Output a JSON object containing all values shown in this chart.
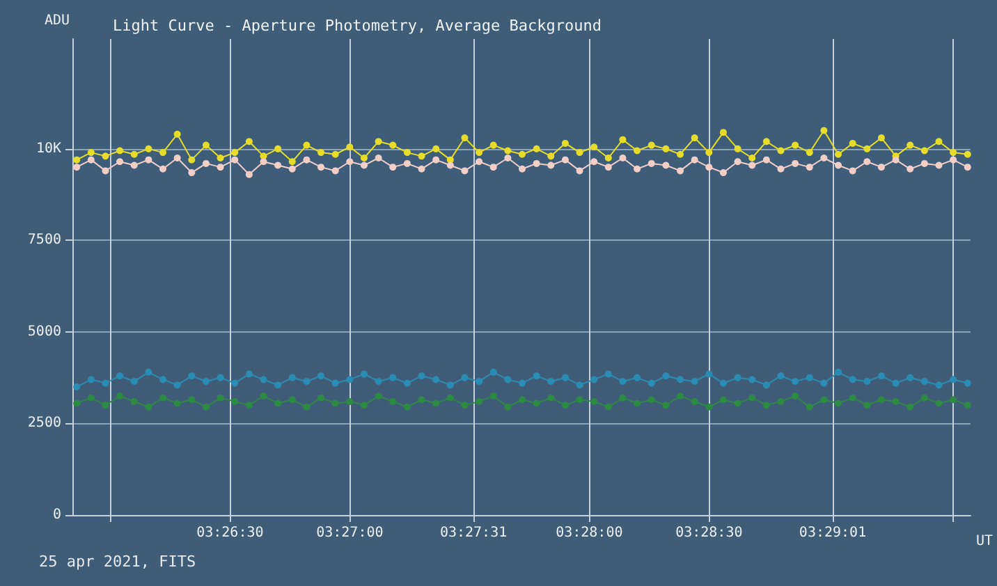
{
  "chart_data": {
    "type": "line",
    "title": "Light Curve - Aperture Photometry, Average Background",
    "xlabel": "UT",
    "ylabel": "ADU",
    "annotations": [
      "25 apr 2021, FITS"
    ],
    "x": [
      3.431,
      3.432,
      3.433,
      3.434,
      3.435,
      3.436,
      3.437,
      3.438,
      3.439,
      3.44,
      3.441,
      3.442,
      3.443,
      3.444,
      3.445,
      3.446,
      3.447,
      3.448,
      3.449,
      3.45,
      3.451,
      3.452,
      3.453,
      3.454,
      3.455,
      3.456,
      3.457,
      3.458,
      3.459,
      3.46,
      3.461,
      3.462,
      3.463,
      3.464,
      3.465,
      3.466,
      3.467,
      3.468,
      3.469,
      3.47,
      3.471,
      3.472,
      3.473,
      3.474,
      3.475,
      3.476,
      3.477,
      3.478,
      3.479,
      3.48,
      3.481,
      3.482,
      3.483,
      3.484,
      3.485,
      3.486,
      3.487,
      3.488,
      3.489,
      3.49,
      3.491,
      3.492,
      3.493
    ],
    "series": [
      {
        "color": "#e6dc2a",
        "values": [
          9700,
          9900,
          9800,
          9950,
          9850,
          10000,
          9900,
          10400,
          9700,
          10100,
          9750,
          9900,
          10200,
          9800,
          10000,
          9650,
          10100,
          9900,
          9850,
          10050,
          9750,
          10200,
          10100,
          9900,
          9800,
          10000,
          9700,
          10300,
          9900,
          10100,
          9950,
          9850,
          10000,
          9800,
          10150,
          9900,
          10050,
          9750,
          10250,
          9950,
          10100,
          10000,
          9850,
          10300,
          9900,
          10450,
          10000,
          9750,
          10200,
          9950,
          10100,
          9900,
          10500,
          9850,
          10150,
          10000,
          10300,
          9800,
          10100,
          9950,
          10200,
          9900,
          9850
        ]
      },
      {
        "color": "#f2cfc6",
        "values": [
          9500,
          9700,
          9400,
          9650,
          9550,
          9700,
          9450,
          9750,
          9350,
          9600,
          9500,
          9700,
          9300,
          9650,
          9550,
          9450,
          9700,
          9500,
          9400,
          9650,
          9550,
          9750,
          9500,
          9600,
          9450,
          9700,
          9550,
          9400,
          9650,
          9500,
          9750,
          9450,
          9600,
          9550,
          9700,
          9400,
          9650,
          9500,
          9750,
          9450,
          9600,
          9550,
          9400,
          9700,
          9500,
          9350,
          9650,
          9550,
          9700,
          9450,
          9600,
          9500,
          9750,
          9550,
          9400,
          9650,
          9500,
          9700,
          9450,
          9600,
          9550,
          9700,
          9500
        ]
      },
      {
        "color": "#2a8cb4",
        "values": [
          3500,
          3700,
          3600,
          3800,
          3650,
          3900,
          3700,
          3550,
          3800,
          3650,
          3750,
          3600,
          3850,
          3700,
          3550,
          3750,
          3650,
          3800,
          3600,
          3700,
          3850,
          3650,
          3750,
          3600,
          3800,
          3700,
          3550,
          3750,
          3650,
          3900,
          3700,
          3600,
          3800,
          3650,
          3750,
          3550,
          3700,
          3850,
          3650,
          3750,
          3600,
          3800,
          3700,
          3650,
          3850,
          3600,
          3750,
          3700,
          3550,
          3800,
          3650,
          3750,
          3600,
          3900,
          3700,
          3650,
          3800,
          3600,
          3750,
          3650,
          3550,
          3700,
          3600
        ]
      },
      {
        "color": "#2c8a44",
        "values": [
          3050,
          3200,
          3000,
          3250,
          3100,
          2950,
          3200,
          3050,
          3150,
          2950,
          3200,
          3100,
          3000,
          3250,
          3050,
          3150,
          2950,
          3200,
          3050,
          3100,
          3000,
          3250,
          3100,
          2950,
          3150,
          3050,
          3200,
          3000,
          3100,
          3250,
          2950,
          3150,
          3050,
          3200,
          3000,
          3150,
          3100,
          2950,
          3200,
          3050,
          3150,
          3000,
          3250,
          3100,
          2950,
          3150,
          3050,
          3200,
          3000,
          3100,
          3250,
          2950,
          3150,
          3050,
          3200,
          3000,
          3150,
          3100,
          2950,
          3200,
          3050,
          3150,
          3000
        ]
      }
    ],
    "xlim": [
      3.4307,
      3.4932
    ],
    "xticks": [
      {
        "value": 3.433333,
        "label": null
      },
      {
        "value": 3.441667,
        "label": "03:26:30"
      },
      {
        "value": 3.45,
        "label": "03:27:00"
      },
      {
        "value": 3.458611,
        "label": "03:27:31"
      },
      {
        "value": 3.466667,
        "label": "03:28:00"
      },
      {
        "value": 3.475,
        "label": "03:28:30"
      },
      {
        "value": 3.483611,
        "label": "03:29:01"
      },
      {
        "value": 3.491944,
        "label": null
      }
    ],
    "ylim": [
      0,
      13000
    ],
    "yticks": [
      0,
      2500,
      5000,
      7500,
      {
        "value": 10000,
        "label": "10K"
      }
    ],
    "grid": true,
    "marker": "circle",
    "line_style": "solid"
  }
}
